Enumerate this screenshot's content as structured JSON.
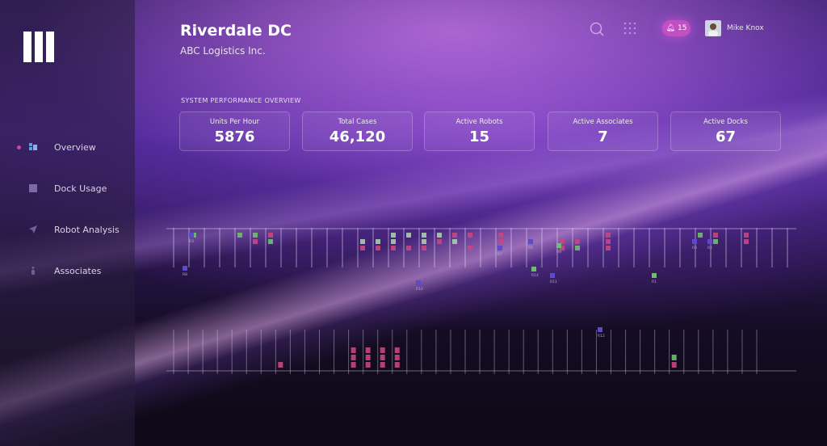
{
  "app": {
    "site": "Riverdale DC",
    "company": "ABC Logistics Inc."
  },
  "header": {
    "notifications": "15",
    "user": "Mike Knox",
    "icons": [
      "search-icon",
      "apps-grid-icon",
      "bell-icon",
      "avatar"
    ]
  },
  "sidebar": {
    "items": [
      {
        "label": "Overview",
        "icon": "grid-icon",
        "active": true
      },
      {
        "label": "Dock Usage",
        "icon": "square-icon"
      },
      {
        "label": "Robot Analysis",
        "icon": "navigation-arrow-icon"
      },
      {
        "label": "Associates",
        "icon": "person-icon"
      }
    ]
  },
  "overview": {
    "title": "SYSTEM PERFORMANCE OVERVIEW",
    "kpis": [
      {
        "label": "Units Per Hour",
        "value": "5876"
      },
      {
        "label": "Total Cases",
        "value": "46,120"
      },
      {
        "label": "Active Robots",
        "value": "15"
      },
      {
        "label": "Active Associates",
        "value": "7"
      },
      {
        "label": "Active Docks",
        "value": "67"
      }
    ]
  },
  "colors": {
    "green": "#6fbf6a",
    "lightgreen": "#a6cfa8",
    "pink": "#c8467f",
    "blue": "#5a4cc8",
    "accent": "#c34fc4"
  },
  "top_row": {
    "docks": [
      {
        "dock": 1,
        "slots": [
          "green"
        ]
      },
      {
        "dock": 4,
        "slots": [
          "green"
        ]
      },
      {
        "dock": 5,
        "slots": [
          "green",
          "pink"
        ]
      },
      {
        "dock": 6,
        "slots": [
          "pink",
          "green"
        ]
      },
      {
        "dock": 12,
        "slots": [
          null,
          "lightgreen",
          "pink"
        ]
      },
      {
        "dock": 13,
        "slots": [
          null,
          "lightgreen",
          "pink"
        ]
      },
      {
        "dock": 14,
        "slots": [
          "lightgreen",
          "lightgreen",
          "pink"
        ]
      },
      {
        "dock": 15,
        "slots": [
          "lightgreen",
          null,
          "pink"
        ]
      },
      {
        "dock": 16,
        "slots": [
          "lightgreen",
          "lightgreen",
          "pink"
        ]
      },
      {
        "dock": 17,
        "slots": [
          "lightgreen",
          "pink"
        ]
      },
      {
        "dock": 18,
        "slots": [
          "pink",
          "lightgreen"
        ]
      },
      {
        "dock": 19,
        "slots": [
          "pink",
          null,
          "pink"
        ]
      },
      {
        "dock": 21,
        "slots": [
          "pink",
          "pink"
        ]
      },
      {
        "dock": 25,
        "slots": [
          null,
          "pink",
          "pink"
        ]
      },
      {
        "dock": 26,
        "slots": [
          null,
          "pink",
          "green"
        ]
      },
      {
        "dock": 28,
        "slots": [
          "pink",
          "pink",
          "pink"
        ]
      },
      {
        "dock": 34,
        "slots": [
          "green"
        ]
      },
      {
        "dock": 35,
        "slots": [
          "pink",
          "green"
        ]
      },
      {
        "dock": 37,
        "slots": [
          "pink",
          "pink"
        ]
      }
    ]
  },
  "bottom_row": {
    "docks": [
      {
        "dock": 7,
        "slots": [
          null,
          null,
          "pink"
        ]
      },
      {
        "dock": 12,
        "slots": [
          "pink",
          "pink",
          "pink"
        ]
      },
      {
        "dock": 13,
        "slots": [
          "pink",
          "pink",
          "pink"
        ]
      },
      {
        "dock": 14,
        "slots": [
          "pink",
          "pink",
          "pink"
        ]
      },
      {
        "dock": 15,
        "slots": [
          "pink",
          "pink",
          "pink"
        ]
      },
      {
        "dock": 34,
        "slots": [
          null,
          "green",
          "pink"
        ]
      }
    ]
  },
  "robots": [
    {
      "id": "R3",
      "color": "blue"
    },
    {
      "id": "R8",
      "color": "blue"
    },
    {
      "id": "R10",
      "color": "blue"
    },
    {
      "id": "R7",
      "color": "blue"
    },
    {
      "id": "R5",
      "color": "blue"
    },
    {
      "id": "R14",
      "color": "green"
    },
    {
      "id": "R11",
      "color": "blue"
    },
    {
      "id": "R9",
      "color": "green"
    },
    {
      "id": "R1",
      "color": "green"
    },
    {
      "id": "R6",
      "color": "blue"
    },
    {
      "id": "R2",
      "color": "blue"
    },
    {
      "id": "R12",
      "color": "blue"
    }
  ]
}
